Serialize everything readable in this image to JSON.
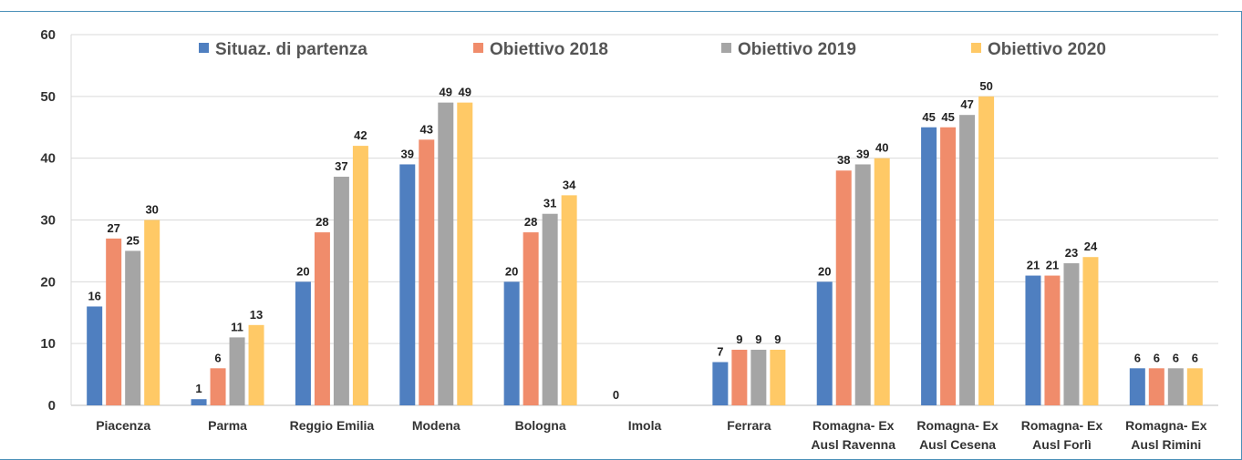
{
  "chart_data": {
    "type": "bar",
    "categories": [
      [
        "Piacenza"
      ],
      [
        "Parma"
      ],
      [
        "Reggio Emilia"
      ],
      [
        "Modena"
      ],
      [
        "Bologna"
      ],
      [
        "Imola"
      ],
      [
        "Ferrara"
      ],
      [
        "Romagna- Ex",
        "Ausl Ravenna"
      ],
      [
        "Romagna- Ex",
        "Ausl Cesena"
      ],
      [
        "Romagna- Ex",
        "Ausl Forlì"
      ],
      [
        "Romagna- Ex",
        "Ausl Rimini"
      ]
    ],
    "series": [
      {
        "name": "Situaz. di partenza",
        "color": "#4f7fc0",
        "values": [
          16,
          1,
          20,
          39,
          20,
          0,
          7,
          20,
          45,
          21,
          6
        ]
      },
      {
        "name": "Obiettivo 2018",
        "color": "#f08c6b",
        "values": [
          27,
          6,
          28,
          43,
          28,
          null,
          9,
          38,
          45,
          21,
          6
        ]
      },
      {
        "name": "Obiettivo 2019",
        "color": "#a5a5a5",
        "values": [
          25,
          11,
          37,
          49,
          31,
          null,
          9,
          39,
          47,
          23,
          6
        ]
      },
      {
        "name": "Obiettivo 2020",
        "color": "#ffc966",
        "values": [
          30,
          13,
          42,
          49,
          34,
          null,
          9,
          40,
          50,
          24,
          6
        ]
      }
    ],
    "y_ticks": [
      "0",
      "10",
      "20",
      "30",
      "40",
      "50",
      "60"
    ],
    "ylim": [
      0,
      60
    ],
    "grid": true,
    "legend_position": "top",
    "title": "",
    "xlabel": "",
    "ylabel": ""
  }
}
